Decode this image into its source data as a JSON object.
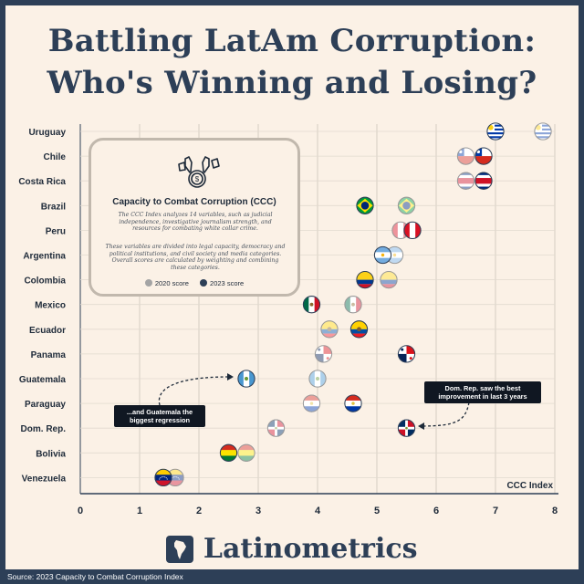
{
  "title_line1": "Battling LatAm Corruption:",
  "title_line2": "Who's Winning and Losing?",
  "info": {
    "title": "Capacity to Combat Corruption (CCC)",
    "paragraph1": "The CCC Index analyzes 14 variables, such as judicial independence, investigative journalism strength, and resources for combating white collar crime.",
    "paragraph2": "These variables are divided into legal capacity, democracy and political institutions, and civil society and media categories. Overall scores are calculated by weighting and combining these categories.",
    "legend_2020": "2020 score",
    "legend_2023": "2023 score"
  },
  "callouts": {
    "dr": "Dom. Rep. saw the best improvement in last 3 years",
    "gt": "...and Guatemala the biggest regression"
  },
  "brand": "Latinometrics",
  "source": "Source: 2023 Capacity to Combat Corruption Index",
  "colors": {
    "navy": "#2d3f57",
    "background": "#fbf1e6",
    "grid": "#d5cdc2",
    "marker_2020": "#a4a4a4",
    "marker_2023": "#2d3f57"
  },
  "chart_data": {
    "type": "scatter",
    "xlabel": "CCC Index",
    "xlim": [
      0,
      8
    ],
    "xticks": [
      0,
      1,
      2,
      3,
      4,
      5,
      6,
      7,
      8
    ],
    "grid": true,
    "legend_placement": "inside top-left box",
    "categories": [
      "Uruguay",
      "Chile",
      "Costa Rica",
      "Brazil",
      "Peru",
      "Argentina",
      "Colombia",
      "Mexico",
      "Ecuador",
      "Panama",
      "Guatemala",
      "Paraguay",
      "Dom. Rep.",
      "Bolivia",
      "Venezuela"
    ],
    "series": [
      {
        "name": "2020 score",
        "values": [
          7.8,
          6.5,
          6.5,
          5.5,
          5.4,
          5.3,
          5.2,
          4.6,
          4.2,
          4.1,
          4.0,
          3.9,
          3.3,
          2.8,
          1.6
        ]
      },
      {
        "name": "2023 score",
        "values": [
          7.0,
          6.8,
          6.8,
          4.8,
          5.6,
          5.1,
          4.8,
          3.9,
          4.7,
          5.5,
          2.8,
          4.6,
          5.5,
          2.5,
          1.4
        ]
      }
    ],
    "flags": [
      "uruguay",
      "chile",
      "costa-rica",
      "brazil",
      "peru",
      "argentina",
      "colombia",
      "mexico",
      "ecuador",
      "panama",
      "guatemala",
      "paraguay",
      "dominican-republic",
      "bolivia",
      "venezuela"
    ]
  }
}
